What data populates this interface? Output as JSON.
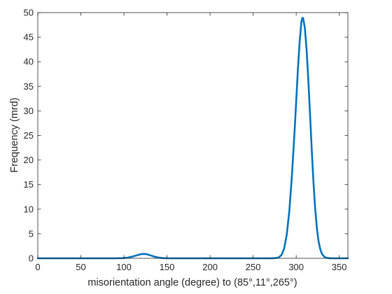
{
  "chart_data": {
    "type": "line",
    "title": "",
    "xlabel": "misorientation angle (degree) to (85°,11°,265°)",
    "ylabel": "Frequency (mrd)",
    "xlim": [
      0,
      360
    ],
    "ylim": [
      0,
      50
    ],
    "xticks": [
      0,
      50,
      100,
      150,
      200,
      250,
      300,
      350
    ],
    "yticks": [
      0,
      5,
      10,
      15,
      20,
      25,
      30,
      35,
      40,
      45,
      50
    ],
    "grid": false,
    "legend": "none",
    "series": [
      {
        "color": "#0072bd",
        "x": [
          0,
          50,
          90,
          100,
          105,
          110,
          115,
          120,
          123,
          126,
          130,
          135,
          140,
          145,
          150,
          160,
          200,
          260,
          270,
          275,
          280,
          283,
          286,
          289,
          292,
          295,
          298,
          300,
          302,
          304,
          306,
          307,
          308,
          310,
          312,
          314,
          316,
          318,
          320,
          322,
          324,
          326,
          328,
          330,
          333,
          336,
          340,
          345,
          350,
          360
        ],
        "y": [
          0,
          0,
          0,
          0.05,
          0.15,
          0.35,
          0.6,
          0.85,
          0.9,
          0.85,
          0.65,
          0.35,
          0.15,
          0.05,
          0,
          0,
          0,
          0,
          0,
          0.02,
          0.2,
          0.7,
          2.0,
          4.8,
          9.6,
          16.8,
          25.6,
          32.0,
          38.6,
          44.1,
          48.1,
          48.9,
          48.9,
          46.9,
          42.6,
          36.5,
          29.4,
          22.2,
          15.6,
          10.1,
          6.1,
          3.4,
          1.8,
          0.85,
          0.25,
          0.06,
          0.01,
          0,
          0,
          0
        ]
      }
    ]
  }
}
